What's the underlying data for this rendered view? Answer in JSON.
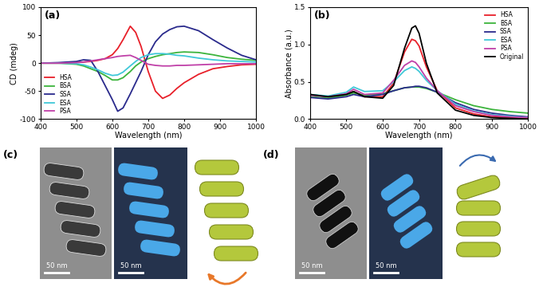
{
  "chart_data": [
    {
      "type": "line",
      "title": "(a)",
      "x_label": "Wavelength (nm)",
      "y_label": "CD (mdeg)",
      "x": [
        400,
        450,
        500,
        520,
        540,
        560,
        580,
        600,
        615,
        630,
        650,
        665,
        680,
        700,
        720,
        740,
        760,
        780,
        800,
        840,
        880,
        920,
        960,
        1000
      ],
      "series": [
        {
          "name": "HSA",
          "color": "#e8202a",
          "values": [
            0,
            0,
            1,
            2,
            3,
            5,
            8,
            15,
            26,
            42,
            66,
            55,
            30,
            -15,
            -50,
            -63,
            -57,
            -45,
            -35,
            -20,
            -10,
            -6,
            -3,
            -2
          ]
        },
        {
          "name": "BSA",
          "color": "#3cb43c",
          "values": [
            0,
            0,
            -2,
            -5,
            -10,
            -15,
            -22,
            -30,
            -30,
            -26,
            -15,
            -5,
            2,
            8,
            12,
            15,
            17,
            19,
            20,
            19,
            15,
            10,
            7,
            5
          ]
        },
        {
          "name": "SSA",
          "color": "#2a2a8c",
          "values": [
            0,
            1,
            3,
            6,
            5,
            -15,
            -40,
            -65,
            -86,
            -80,
            -55,
            -35,
            -15,
            15,
            38,
            52,
            60,
            65,
            66,
            58,
            42,
            27,
            14,
            6
          ]
        },
        {
          "name": "ESA",
          "color": "#40c8d8",
          "values": [
            0,
            0,
            -1,
            -3,
            -7,
            -12,
            -18,
            -22,
            -21,
            -16,
            -5,
            3,
            10,
            15,
            17,
            17,
            16,
            14,
            13,
            9,
            6,
            4,
            3,
            2
          ]
        },
        {
          "name": "PSA",
          "color": "#c040a8",
          "values": [
            0,
            0,
            1,
            2,
            4,
            6,
            8,
            10,
            12,
            13,
            14,
            10,
            5,
            -2,
            -4,
            -5,
            -5,
            -4,
            -4,
            -3,
            -2,
            -1,
            -1,
            -1
          ]
        }
      ],
      "xlim": [
        400,
        1000
      ],
      "xticks": [
        400,
        500,
        600,
        700,
        800,
        900,
        1000
      ],
      "ylim": [
        -100,
        100
      ],
      "yticks": [
        -100,
        -50,
        0,
        50,
        100
      ],
      "legend": "lower left"
    },
    {
      "type": "line",
      "title": "(b)",
      "x_label": "Wavelength (nm)",
      "y_label": "Absorbance (a.u.)",
      "x": [
        400,
        450,
        500,
        520,
        550,
        600,
        630,
        660,
        680,
        690,
        700,
        720,
        750,
        800,
        850,
        900,
        950,
        1000
      ],
      "series": [
        {
          "name": "HSA",
          "color": "#e8202a",
          "values": [
            0.33,
            0.3,
            0.33,
            0.37,
            0.3,
            0.3,
            0.48,
            0.9,
            1.07,
            1.05,
            0.98,
            0.7,
            0.38,
            0.15,
            0.07,
            0.03,
            0.02,
            0.01
          ]
        },
        {
          "name": "BSA",
          "color": "#3cb43c",
          "values": [
            0.3,
            0.28,
            0.32,
            0.35,
            0.32,
            0.34,
            0.38,
            0.42,
            0.43,
            0.43,
            0.43,
            0.41,
            0.36,
            0.26,
            0.18,
            0.13,
            0.1,
            0.08
          ]
        },
        {
          "name": "SSA",
          "color": "#2a2a8c",
          "values": [
            0.29,
            0.27,
            0.3,
            0.33,
            0.3,
            0.33,
            0.38,
            0.42,
            0.43,
            0.44,
            0.44,
            0.42,
            0.36,
            0.22,
            0.13,
            0.08,
            0.05,
            0.03
          ]
        },
        {
          "name": "ESA",
          "color": "#40c8d8",
          "values": [
            0.33,
            0.31,
            0.36,
            0.43,
            0.37,
            0.38,
            0.5,
            0.65,
            0.7,
            0.68,
            0.64,
            0.52,
            0.38,
            0.2,
            0.11,
            0.06,
            0.04,
            0.02
          ]
        },
        {
          "name": "PSA",
          "color": "#c040a8",
          "values": [
            0.32,
            0.3,
            0.34,
            0.4,
            0.33,
            0.35,
            0.52,
            0.72,
            0.78,
            0.76,
            0.7,
            0.55,
            0.38,
            0.18,
            0.1,
            0.05,
            0.03,
            0.02
          ]
        },
        {
          "name": "Original",
          "color": "#000000",
          "values": [
            0.33,
            0.3,
            0.33,
            0.37,
            0.3,
            0.28,
            0.45,
            0.95,
            1.22,
            1.25,
            1.15,
            0.75,
            0.35,
            0.12,
            0.05,
            0.02,
            0.01,
            0.0
          ]
        }
      ],
      "xlim": [
        400,
        1000
      ],
      "xticks": [
        400,
        500,
        600,
        700,
        800,
        900,
        1000
      ],
      "ylim": [
        0,
        1.5
      ],
      "yticks": [
        {
          "value": 0,
          "label": "0.0"
        },
        {
          "value": 0.5,
          "label": "0.5"
        },
        {
          "value": 1.0,
          "label": "1.0"
        },
        {
          "value": 1.5,
          "label": "1.5"
        }
      ],
      "legend": "upper right"
    }
  ],
  "panels": [
    {
      "label": "(c)",
      "scale_bars": [
        "50 nm",
        "50 nm"
      ]
    },
    {
      "label": "(d)",
      "scale_bars": [
        "50 nm",
        "50 nm"
      ]
    }
  ]
}
